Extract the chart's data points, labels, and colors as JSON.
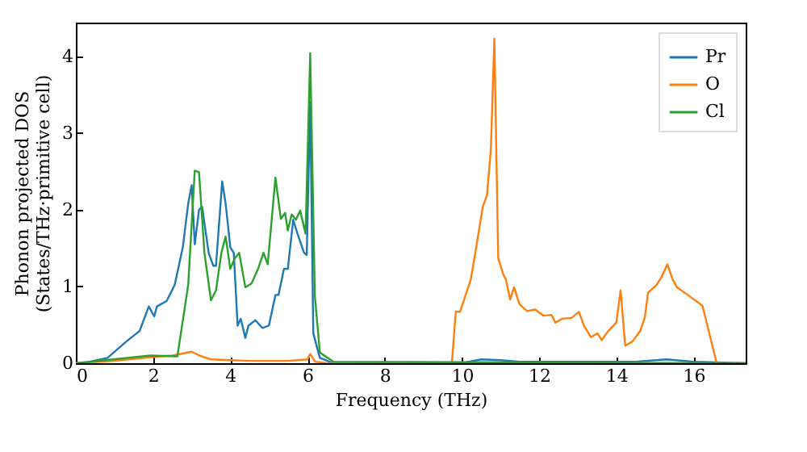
{
  "chart_data": {
    "type": "line",
    "xlabel": "Frequency (THz)",
    "ylabel": "Phonon projected DOS\n(States/THz·primitive cell)",
    "xlim": [
      0,
      17.35
    ],
    "ylim": [
      0,
      4.44
    ],
    "xticks": [
      0,
      2,
      4,
      6,
      8,
      10,
      12,
      14,
      16
    ],
    "yticks": [
      0,
      1,
      2,
      3,
      4
    ],
    "legend": "top right",
    "grid": false,
    "series": [
      {
        "name": "Pr",
        "color": "#1f77b4",
        "x": [
          0,
          0.26,
          0.82,
          1.3,
          1.65,
          1.89,
          2.03,
          2.1,
          2.35,
          2.56,
          2.77,
          2.91,
          3.0,
          3.08,
          3.19,
          3.27,
          3.44,
          3.56,
          3.63,
          3.79,
          3.88,
          4.0,
          4.09,
          4.19,
          4.27,
          4.39,
          4.47,
          4.65,
          4.83,
          5.0,
          5.17,
          5.25,
          5.39,
          5.49,
          5.63,
          5.74,
          5.91,
          5.98,
          6.07,
          6.15,
          6.32,
          6.67,
          10.0,
          10.5,
          11.0,
          11.5,
          14.5,
          15.3,
          16.0,
          17.35
        ],
        "values": [
          0,
          0.01,
          0.07,
          0.28,
          0.42,
          0.74,
          0.61,
          0.74,
          0.81,
          1.02,
          1.51,
          2.08,
          2.32,
          1.55,
          2.0,
          2.04,
          1.44,
          1.27,
          1.27,
          2.37,
          2.08,
          1.51,
          1.44,
          0.49,
          0.58,
          0.33,
          0.49,
          0.56,
          0.46,
          0.49,
          0.89,
          0.89,
          1.23,
          1.23,
          1.87,
          1.69,
          1.44,
          1.41,
          3.4,
          0.39,
          0.07,
          0,
          0,
          0.05,
          0.04,
          0.02,
          0.02,
          0.05,
          0.02,
          0
        ]
      },
      {
        "name": "O",
        "color": "#ff7f0e",
        "x": [
          0,
          1.0,
          2.0,
          2.5,
          3.0,
          3.2,
          3.5,
          4.5,
          5.5,
          6.0,
          6.07,
          6.2,
          6.5,
          9.7,
          9.74,
          9.84,
          9.95,
          10.09,
          10.23,
          10.37,
          10.54,
          10.65,
          10.75,
          10.84,
          10.94,
          11.07,
          11.14,
          11.25,
          11.35,
          11.49,
          11.69,
          11.9,
          12.11,
          12.32,
          12.42,
          12.6,
          12.84,
          13.03,
          13.16,
          13.34,
          13.51,
          13.62,
          13.79,
          14.0,
          14.11,
          14.23,
          14.41,
          14.62,
          14.74,
          14.82,
          15.04,
          15.18,
          15.32,
          15.46,
          15.57,
          15.88,
          16.23,
          16.6,
          17.35
        ],
        "values": [
          0,
          0.03,
          0.08,
          0.1,
          0.15,
          0.1,
          0.05,
          0.03,
          0.03,
          0.05,
          0.12,
          0.02,
          0,
          0,
          0,
          0.67,
          0.67,
          0.88,
          1.09,
          1.51,
          2.04,
          2.19,
          2.79,
          4.23,
          1.37,
          1.16,
          1.09,
          0.83,
          0.99,
          0.77,
          0.68,
          0.7,
          0.62,
          0.63,
          0.53,
          0.58,
          0.59,
          0.67,
          0.49,
          0.34,
          0.39,
          0.3,
          0.42,
          0.53,
          0.95,
          0.23,
          0.28,
          0.42,
          0.6,
          0.92,
          1.02,
          1.13,
          1.29,
          1.09,
          0.99,
          0.88,
          0.75,
          0,
          0
        ]
      },
      {
        "name": "Cl",
        "color": "#2ca02c",
        "x": [
          0,
          1.93,
          2.63,
          2.91,
          3.08,
          3.19,
          3.33,
          3.5,
          3.63,
          3.77,
          3.88,
          4.0,
          4.12,
          4.23,
          4.39,
          4.55,
          4.72,
          4.86,
          4.97,
          5.17,
          5.31,
          5.42,
          5.49,
          5.59,
          5.7,
          5.81,
          5.95,
          6.07,
          6.19,
          6.32,
          6.67,
          17.35
        ],
        "values": [
          0,
          0.1,
          0.09,
          1.02,
          2.51,
          2.49,
          1.44,
          0.82,
          0.95,
          1.44,
          1.65,
          1.23,
          1.37,
          1.44,
          0.99,
          1.04,
          1.23,
          1.44,
          1.29,
          2.42,
          1.88,
          1.96,
          1.73,
          1.94,
          1.87,
          1.99,
          1.69,
          4.04,
          0.88,
          0.14,
          0.02,
          0
        ]
      }
    ]
  }
}
